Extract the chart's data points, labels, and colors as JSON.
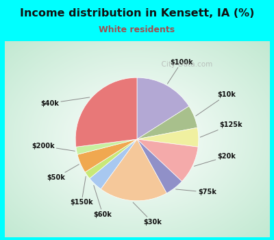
{
  "title": "Income distribution in Kensett, IA (%)",
  "subtitle": "White residents",
  "labels": [
    "$100k",
    "$10k",
    "$125k",
    "$20k",
    "$75k",
    "$30k",
    "$60k",
    "$150k",
    "$50k",
    "$200k",
    "$40k"
  ],
  "values": [
    16,
    6,
    5,
    10,
    5,
    18,
    4,
    2,
    5,
    2,
    27
  ],
  "colors": [
    "#b3a8d4",
    "#a8c08c",
    "#f0f0a0",
    "#f4aaaa",
    "#9090c8",
    "#f5c89a",
    "#a8c8f0",
    "#c8e878",
    "#f0a850",
    "#c8f0a0",
    "#e87878"
  ],
  "bg_gradient_inner": "#ffffff",
  "bg_gradient_outer": "#b8e8c8",
  "outer_background": "#00ffff",
  "title_color": "#111111",
  "subtitle_color": "#a05050",
  "watermark": "City-Data.com",
  "label_color": "#111111"
}
